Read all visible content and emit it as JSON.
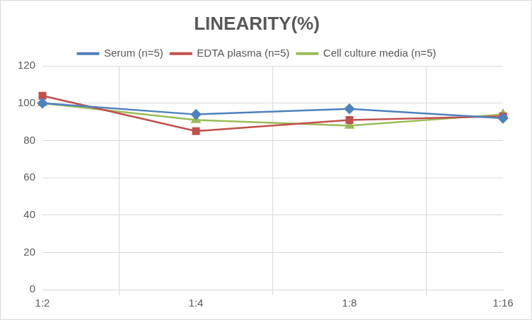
{
  "chart_data": {
    "type": "line",
    "title": "LINEARITY(%)",
    "categories": [
      "1:2",
      "1:4",
      "1:8",
      "1:16"
    ],
    "series": [
      {
        "name": "Serum (n=5)",
        "color": "#4f81bd",
        "marker": "diamond",
        "line_style": "solid",
        "values": [
          100,
          94,
          97,
          92
        ]
      },
      {
        "name": "EDTA plasma (n=5)",
        "color": "#c0504d",
        "marker": "square",
        "line_style": "solid",
        "values": [
          104,
          85,
          91,
          93
        ]
      },
      {
        "name": "Cell culture media (n=5)",
        "color": "#9bbb59",
        "marker": "triangle",
        "line_style": "solid",
        "values": [
          100,
          91,
          88,
          94
        ]
      }
    ],
    "ylim": [
      0,
      120
    ],
    "yticks": [
      0,
      20,
      40,
      60,
      80,
      100,
      120
    ],
    "grid": true,
    "legend": "top"
  }
}
